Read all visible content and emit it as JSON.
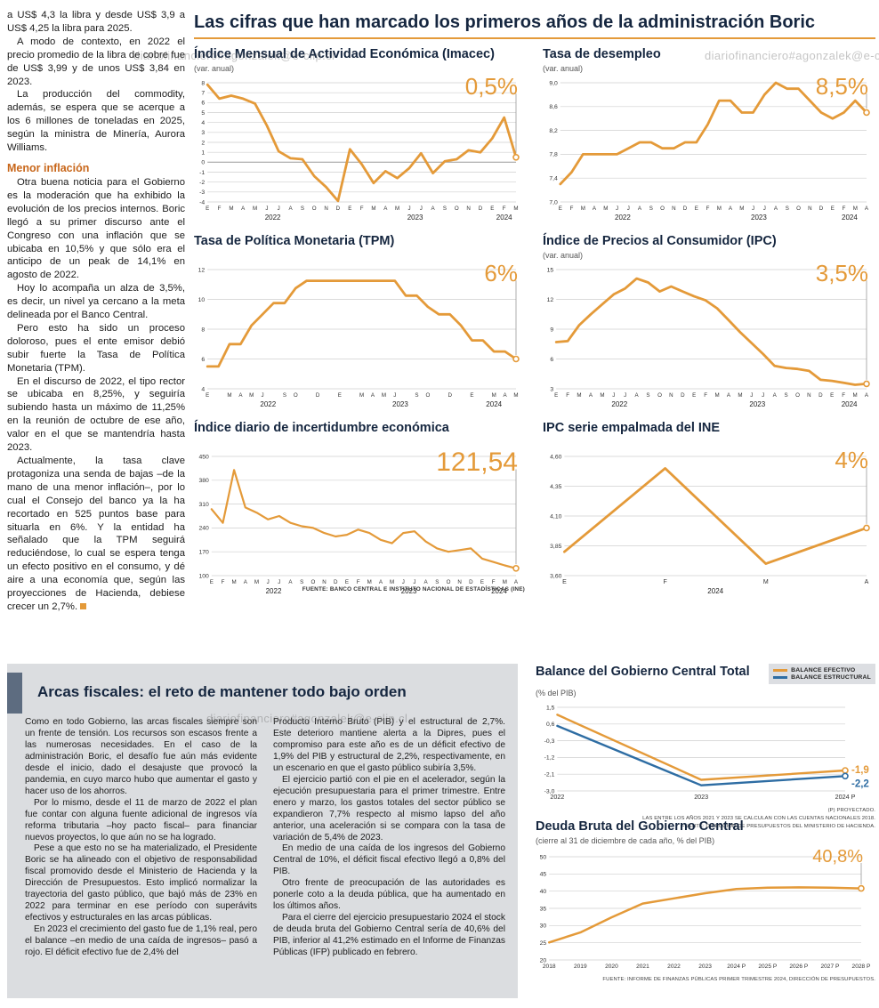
{
  "page": {
    "main_title": "Las cifras que han marcado los primeros años de la administración Boric",
    "watermark": "diariofinanciero#agonzalek@e-clip.cl",
    "charts_source": "FUENTE: BANCO CENTRAL E INSTITUTO NACIONAL DE ESTADÍSTICAS (INE)"
  },
  "colors": {
    "accent_orange": "#E49A39",
    "accent_blue": "#2E6DA3",
    "navy": "#15263F",
    "heading_orange": "#C8671B",
    "panel_gray": "#DBDDE0"
  },
  "article": {
    "paragraphs": [
      "a US$ 4,3 la libra y desde US$ 3,9 a US$ 4,25 la libra para 2025.",
      "A modo de contexto, en 2022 el precio promedio de la libra de cobre fue de US$ 3,99 y de unos US$ 3,84 en 2023.",
      "La producción del commodity, además, se espera que se acerque a los 6 millones de toneladas en 2025, según la ministra de Minería, Aurora Williams."
    ],
    "heading": "Menor inflación",
    "paragraphs2": [
      "Otra buena noticia para el Gobierno es la moderación que ha exhibido la evolución de los precios internos. Boric llegó a su primer discurso ante el Congreso con una inflación que se ubicaba en 10,5% y que sólo era el anticipo de un peak de 14,1% en agosto de 2022.",
      "Hoy lo acompaña un alza de 3,5%, es decir, un nivel ya cercano a la meta delineada por el Banco Central.",
      "Pero esto ha sido un proceso doloroso, pues el ente emisor debió subir fuerte la Tasa de Política Monetaria (TPM).",
      "En el discurso de 2022, el tipo rector se ubicaba en 8,25%, y seguiría subiendo hasta un máximo de 11,25% en la reunión de octubre de ese año, valor en el que se mantendría hasta 2023.",
      "Actualmente, la tasa clave protagoniza una senda de bajas –de la mano de una menor inflación–, por lo cual el Consejo del banco ya la ha recortado en 525 puntos base para situarla en 6%. Y la entidad ha señalado que la TPM seguirá reduciéndose, lo cual se espera tenga un efecto positivo en el consumo, y dé aire a una economía que, según las proyecciones de Hacienda, debiese crecer un 2,7%."
    ]
  },
  "fiscal_section": {
    "title": "Arcas fiscales: el reto de mantener todo bajo orden",
    "col1": [
      "Como en todo Gobierno, las arcas fiscales siempre son un frente de tensión. Los recursos son escasos frente a las numerosas necesidades. En el caso de la administración Boric, el desafío fue aún más evidente desde el inicio, dado el desajuste que provocó la pandemia, en cuyo marco hubo que aumentar el gasto y hacer uso de los ahorros.",
      "Por lo mismo, desde el 11 de marzo de 2022 el plan fue contar con alguna fuente adicional de ingresos vía reforma tributaria –hoy pacto fiscal– para financiar nuevos proyectos, lo que aún no se ha logrado.",
      "Pese a que esto no se ha materializado, el Presidente Boric se ha alineado con el objetivo de responsabilidad fiscal promovido desde el Ministerio de Hacienda y la Dirección de Presupuestos. Esto implicó normalizar la trayectoria del gasto público, que bajó más de 23% en 2022 para terminar en ese período con superávits efectivos y estructurales en las arcas públicas.",
      "En 2023 el crecimiento del gasto fue de 1,1% real, pero el balance –en medio de una caída de ingresos– pasó a rojo. El déficit efectivo fue de 2,4% del"
    ],
    "col2": [
      "Producto Interno Bruto (PIB) y el estructural de 2,7%. Este deterioro mantiene alerta a la Dipres, pues el compromiso para este año es de un déficit efectivo de 1,9% del PIB y estructural de 2,2%, respectivamente, en un escenario en que el gasto público subiría 3,5%.",
      "El ejercicio partió con el pie en el acelerador, según la ejecución presupuestaria para el primer trimestre. Entre enero y marzo, los gastos totales del sector público se expandieron 7,7% respecto al mismo lapso del año anterior, una aceleración si se compara con la tasa de variación de 5,4% de 2023.",
      "En medio de una caída de los ingresos del Gobierno Central de 10%, el déficit fiscal efectivo llegó a 0,8% del PIB.",
      "Otro frente de preocupación de las autoridades es ponerle coto a la deuda pública, que ha aumentado en los últimos años.",
      "Para el cierre del ejercicio presupuestario 2024 el stock de deuda bruta del Gobierno Central sería de 40,6% del PIB, inferior al 41,2% estimado en el Informe de Finanzas Públicas (IFP) publicado en febrero."
    ]
  },
  "chart_data": [
    {
      "id": "imacec",
      "type": "line",
      "title": "Índice Mensual de Actividad Económica (Imacec)",
      "subtitle": "(var. anual)",
      "big_label": "0,5%",
      "big_size": 26,
      "color": "#E49A39",
      "line_width": 2.8,
      "ylim": [
        -4,
        8
      ],
      "y_ticks": [
        [
          8,
          "8"
        ],
        [
          7,
          "7"
        ],
        [
          6,
          "6"
        ],
        [
          5,
          "5"
        ],
        [
          4,
          "4"
        ],
        [
          3,
          "3"
        ],
        [
          2,
          "2"
        ],
        [
          1,
          "1"
        ],
        [
          0,
          "0"
        ],
        [
          -1,
          "-1"
        ],
        [
          -2,
          "-2"
        ],
        [
          -3,
          "-3"
        ],
        [
          -4,
          "-4"
        ]
      ],
      "zero_dark": true,
      "x_labels": [
        "E",
        "F",
        "M",
        "A",
        "M",
        "J",
        "J",
        "A",
        "S",
        "O",
        "N",
        "D",
        "E",
        "F",
        "M",
        "A",
        "M",
        "J",
        "J",
        "A",
        "S",
        "O",
        "N",
        "D",
        "E",
        "F",
        "M"
      ],
      "year_labels": [
        {
          "label": "2022",
          "start": 0,
          "end": 11
        },
        {
          "label": "2023",
          "start": 12,
          "end": 23
        },
        {
          "label": "2024",
          "start": 24,
          "end": 26
        }
      ],
      "values": [
        7.8,
        6.4,
        6.7,
        6.4,
        5.9,
        3.7,
        1.1,
        0.4,
        0.3,
        -1.4,
        -2.5,
        -3.9,
        1.3,
        -0.2,
        -2.1,
        -0.9,
        -1.6,
        -0.6,
        0.9,
        -1.1,
        0.1,
        0.3,
        1.2,
        1.0,
        2.4,
        4.5,
        0.5
      ]
    },
    {
      "id": "desempleo",
      "type": "line",
      "title": "Tasa de desempleo",
      "subtitle": "(var. anual)",
      "big_label": "8,5%",
      "big_size": 26,
      "color": "#E49A39",
      "line_width": 2.8,
      "ylim": [
        7.0,
        9.0
      ],
      "y_ticks": [
        [
          9.0,
          "9,0"
        ],
        [
          8.6,
          "8,6"
        ],
        [
          8.2,
          "8,2"
        ],
        [
          7.8,
          "7,8"
        ],
        [
          7.4,
          "7,4"
        ],
        [
          7.0,
          "7,0"
        ]
      ],
      "x_labels": [
        "E",
        "F",
        "M",
        "A",
        "M",
        "J",
        "J",
        "A",
        "S",
        "O",
        "N",
        "D",
        "E",
        "F",
        "M",
        "A",
        "M",
        "J",
        "J",
        "A",
        "S",
        "O",
        "N",
        "D",
        "E",
        "F",
        "M",
        "A"
      ],
      "year_labels": [
        {
          "label": "2022",
          "start": 0,
          "end": 11
        },
        {
          "label": "2023",
          "start": 12,
          "end": 23
        },
        {
          "label": "2024",
          "start": 24,
          "end": 27
        }
      ],
      "values": [
        7.3,
        7.5,
        7.8,
        7.8,
        7.8,
        7.8,
        7.9,
        8.0,
        8.0,
        7.9,
        7.9,
        8.0,
        8.0,
        8.3,
        8.7,
        8.7,
        8.5,
        8.5,
        8.8,
        9.0,
        8.9,
        8.9,
        8.7,
        8.5,
        8.4,
        8.5,
        8.7,
        8.5
      ]
    },
    {
      "id": "tpm",
      "type": "line",
      "title": "Tasa de Política Monetaria (TPM)",
      "subtitle": "",
      "big_label": "6%",
      "big_size": 26,
      "color": "#E49A39",
      "line_width": 2.8,
      "ylim": [
        4,
        12
      ],
      "y_ticks": [
        [
          12,
          "12"
        ],
        [
          10,
          "10"
        ],
        [
          8,
          "8"
        ],
        [
          6,
          "6"
        ],
        [
          4,
          "4"
        ]
      ],
      "x_labels": [
        "E",
        "",
        "M",
        "A",
        "M",
        "J",
        "",
        "S",
        "O",
        "",
        "D",
        "",
        "E",
        "",
        "M",
        "A",
        "M",
        "J",
        "",
        "S",
        "O",
        "",
        "D",
        "",
        "E",
        "",
        "M",
        "A",
        "M"
      ],
      "year_labels": [
        {
          "label": "2022",
          "start": 0,
          "end": 11
        },
        {
          "label": "2023",
          "start": 12,
          "end": 23
        },
        {
          "label": "2024",
          "start": 24,
          "end": 28
        }
      ],
      "values": [
        5.5,
        5.5,
        7.0,
        7.0,
        8.25,
        9.0,
        9.75,
        9.75,
        10.75,
        11.25,
        11.25,
        11.25,
        11.25,
        11.25,
        11.25,
        11.25,
        11.25,
        11.25,
        10.25,
        10.25,
        9.5,
        9.0,
        9.0,
        8.25,
        7.25,
        7.25,
        6.5,
        6.5,
        6.0
      ]
    },
    {
      "id": "ipc",
      "type": "line",
      "title": "Índice de Precios al Consumidor (IPC)",
      "subtitle": "(var. anual)",
      "big_label": "3,5%",
      "big_size": 26,
      "color": "#E49A39",
      "line_width": 2.8,
      "ylim": [
        3,
        15
      ],
      "y_ticks": [
        [
          15,
          "15"
        ],
        [
          12,
          "12"
        ],
        [
          9,
          "9"
        ],
        [
          6,
          "6"
        ],
        [
          3,
          "3"
        ]
      ],
      "x_labels": [
        "E",
        "F",
        "M",
        "A",
        "M",
        "J",
        "J",
        "A",
        "S",
        "O",
        "N",
        "D",
        "E",
        "F",
        "M",
        "A",
        "M",
        "J",
        "J",
        "A",
        "S",
        "O",
        "N",
        "D",
        "E",
        "F",
        "M",
        "A"
      ],
      "year_labels": [
        {
          "label": "2022",
          "start": 0,
          "end": 11
        },
        {
          "label": "2023",
          "start": 12,
          "end": 23
        },
        {
          "label": "2024",
          "start": 24,
          "end": 27
        }
      ],
      "values": [
        7.7,
        7.8,
        9.4,
        10.5,
        11.5,
        12.5,
        13.1,
        14.1,
        13.7,
        12.8,
        13.3,
        12.8,
        12.3,
        11.9,
        11.1,
        9.9,
        8.7,
        7.6,
        6.5,
        5.3,
        5.1,
        5.0,
        4.8,
        3.9,
        3.8,
        3.6,
        3.4,
        3.5
      ]
    },
    {
      "id": "incertidumbre",
      "type": "line",
      "title": "Índice diario de incertidumbre económica",
      "subtitle": "",
      "big_label": "121,54",
      "big_size": 30,
      "color": "#E49A39",
      "line_width": 2.2,
      "ylim": [
        100,
        450
      ],
      "y_ticks": [
        [
          450,
          "450"
        ],
        [
          380,
          "380"
        ],
        [
          310,
          "310"
        ],
        [
          240,
          "240"
        ],
        [
          170,
          "170"
        ],
        [
          100,
          "100"
        ]
      ],
      "x_labels": [
        "E",
        "F",
        "M",
        "A",
        "M",
        "J",
        "J",
        "A",
        "S",
        "O",
        "N",
        "D",
        "E",
        "F",
        "M",
        "A",
        "M",
        "J",
        "J",
        "A",
        "S",
        "O",
        "N",
        "D",
        "E",
        "F",
        "M",
        "A"
      ],
      "year_labels": [
        {
          "label": "2022",
          "start": 0,
          "end": 11
        },
        {
          "label": "2023",
          "start": 12,
          "end": 23
        },
        {
          "label": "2024",
          "start": 24,
          "end": 27
        }
      ],
      "values": [
        295,
        255,
        410,
        300,
        285,
        265,
        275,
        255,
        245,
        240,
        225,
        215,
        220,
        235,
        225,
        205,
        195,
        225,
        230,
        200,
        180,
        170,
        175,
        180,
        150,
        140,
        130,
        121.54
      ]
    },
    {
      "id": "ipc_empalmada",
      "type": "line",
      "title": "IPC serie empalmada del INE",
      "subtitle": "",
      "big_label": "4%",
      "big_size": 26,
      "color": "#E49A39",
      "line_width": 2.8,
      "ylim": [
        3.6,
        4.6
      ],
      "y_ticks": [
        [
          4.6,
          "4,60"
        ],
        [
          4.35,
          "4,35"
        ],
        [
          4.1,
          "4,10"
        ],
        [
          3.85,
          "3,85"
        ],
        [
          3.6,
          "3,60"
        ]
      ],
      "x_labels": [
        "E",
        "F",
        "M",
        "A"
      ],
      "x_label_size": 7,
      "year_labels": [
        {
          "label": "2024",
          "start": 0,
          "end": 3
        }
      ],
      "values": [
        3.8,
        4.5,
        3.7,
        4.0
      ]
    },
    {
      "id": "balance",
      "type": "line",
      "title": "Balance del Gobierno Central Total",
      "subtitle": "(% del PIB)",
      "legend_position": "top-right",
      "margin_right": 34,
      "line_width": 2.4,
      "ylim": [
        -3.0,
        1.5
      ],
      "y_ticks": [
        [
          1.5,
          "1,5"
        ],
        [
          0.6,
          "0,6"
        ],
        [
          -0.3,
          "-0,3"
        ],
        [
          -1.2,
          "-1,2"
        ],
        [
          -2.1,
          "-2,1"
        ],
        [
          -3.0,
          "-3,0"
        ]
      ],
      "x_labels": [
        "2022",
        "2023",
        "2024 P"
      ],
      "x_label_size": 7.2,
      "series": [
        {
          "name": "BALANCE EFECTIVO",
          "color": "#E49A39",
          "values": [
            1.1,
            -2.4,
            -1.9
          ],
          "end_label": "-1,9",
          "end_label_dy": 0
        },
        {
          "name": "BALANCE ESTRUCTURAL",
          "color": "#2E6DA3",
          "values": [
            0.5,
            -2.7,
            -2.2
          ],
          "end_label": "-2,2",
          "end_label_dy": 9
        }
      ],
      "footnotes": [
        "(P) PROYECTADO.",
        "LAS ENTRE LOS AÑOS 2021 Y 2023 SE CALCULAN CON LAS CUENTAS NACIONALES 2018.",
        "FUENTE: DIRECCIÓN DE PRESUPUESTOS DEL MINISTERIO DE HACIENDA."
      ]
    },
    {
      "id": "deuda",
      "type": "line",
      "title": "Deuda Bruta del Gobierno Central",
      "subtitle": "(cierre al 31 de diciembre de cada año, % del PIB)",
      "big_label": "40,8%",
      "big_size": 20,
      "color": "#E49A39",
      "line_width": 2.5,
      "margin_top": 10,
      "margin_right": 16,
      "ylim": [
        20,
        50
      ],
      "y_ticks": [
        [
          50,
          "50"
        ],
        [
          45,
          "45"
        ],
        [
          40,
          "40"
        ],
        [
          35,
          "35"
        ],
        [
          30,
          "30"
        ],
        [
          25,
          "25"
        ],
        [
          20,
          "20"
        ]
      ],
      "x_labels": [
        "2018",
        "2019",
        "2020",
        "2021",
        "2022",
        "2023",
        "2024 P",
        "2025 P",
        "2026 P",
        "2027 P",
        "2028 P"
      ],
      "x_label_size": 6.6,
      "values": [
        25.1,
        28.0,
        32.4,
        36.4,
        37.9,
        39.4,
        40.6,
        41.0,
        41.1,
        41.0,
        40.8
      ],
      "footnotes": [
        "FUENTE: INFORME DE FINANZAS PÚBLICAS PRIMER TRIMESTRE 2024, DIRECCIÓN DE PRESUPUESTOS."
      ]
    }
  ]
}
